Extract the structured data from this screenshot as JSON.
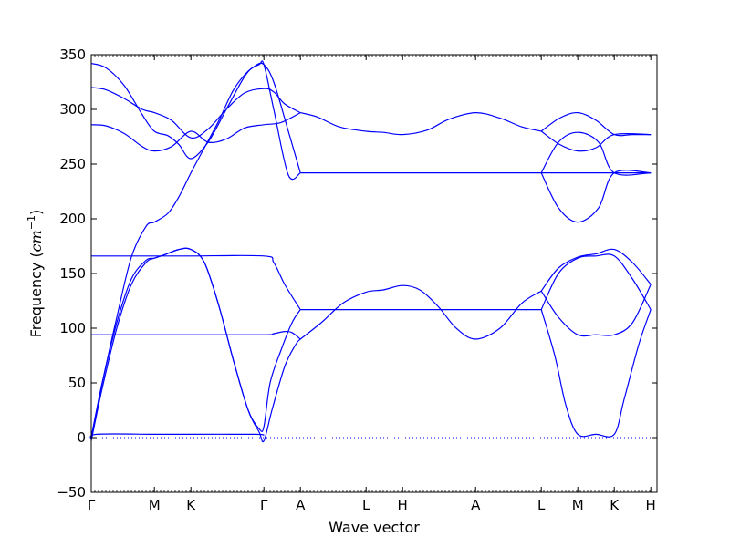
{
  "chart_data": {
    "type": "line",
    "title": "",
    "xlabel": "Wave vector",
    "ylabel_text": "Frequency (",
    "ylabel_unit": "cm",
    "ylabel_unit_exp": "−1",
    "ylabel_close": ")",
    "ylim": [
      -50,
      350
    ],
    "yticks": [
      -50,
      0,
      50,
      100,
      150,
      200,
      250,
      300,
      350
    ],
    "ytick_labels": [
      "−50",
      "0",
      "50",
      "100",
      "150",
      "200",
      "250",
      "300",
      "350"
    ],
    "xlim": [
      0,
      15.5
    ],
    "xticks": [
      {
        "label": "Γ",
        "x": 0.0
      },
      {
        "label": "M",
        "x": 1.73
      },
      {
        "label": "K",
        "x": 2.73
      },
      {
        "label": "Γ",
        "x": 4.73
      },
      {
        "label": "A",
        "x": 5.73
      },
      {
        "label": "L",
        "x": 7.53
      },
      {
        "label": "H",
        "x": 8.53
      },
      {
        "label": "A",
        "x": 10.53
      },
      {
        "label": "L",
        "x": 12.33
      },
      {
        "label": "M",
        "x": 13.33
      },
      {
        "label": "K",
        "x": 14.33
      },
      {
        "label": "H",
        "x": 15.33
      }
    ],
    "zero_line": {
      "y": 0,
      "style": "dotted",
      "color": "#0000ff"
    },
    "line_color": "#0000ff",
    "grid": false,
    "series": [
      {
        "x": [
          0,
          0.4,
          0.9,
          1.4,
          1.73,
          2.1,
          2.4,
          2.73,
          3.2,
          3.7,
          4.2,
          4.5,
          4.73,
          5.0,
          5.4,
          5.73
        ],
        "values": [
          342,
          338,
          322,
          295,
          280,
          276,
          268,
          255,
          270,
          300,
          330,
          340,
          341,
          325,
          280,
          242
        ]
      },
      {
        "x": [
          0,
          0.4,
          0.9,
          1.4,
          1.73,
          2.2,
          2.73,
          3.2,
          3.7,
          4.2,
          4.73,
          5.0,
          5.3,
          5.73
        ],
        "values": [
          320,
          318,
          310,
          300,
          297,
          290,
          274,
          282,
          300,
          315,
          319,
          316,
          305,
          297
        ]
      },
      {
        "x": [
          0,
          0.4,
          0.9,
          1.4,
          1.73,
          2.2,
          2.73,
          3.2,
          3.7,
          4.2,
          4.73,
          5.2,
          5.73
        ],
        "values": [
          286,
          285,
          278,
          266,
          262,
          266,
          280,
          270,
          273,
          283,
          286,
          288,
          297
        ]
      },
      {
        "x": [
          0,
          0.3,
          0.7,
          1.1,
          1.5,
          1.73,
          2.1,
          2.4,
          2.73,
          3.1,
          3.5,
          3.9,
          4.3,
          4.6,
          4.73,
          5.0,
          5.4,
          5.73
        ],
        "values": [
          0,
          50,
          110,
          165,
          193,
          197,
          205,
          220,
          242,
          265,
          290,
          318,
          335,
          341,
          341,
          300,
          240,
          242
        ]
      },
      {
        "x": [
          0,
          1.73,
          2.73,
          4.73,
          5.0,
          5.3,
          5.73
        ],
        "values": [
          166,
          166,
          166,
          166,
          160,
          140,
          117
        ]
      },
      {
        "x": [
          0,
          0.3,
          0.7,
          1.1,
          1.5,
          1.73,
          2.0,
          2.4,
          2.73,
          3.1,
          3.5,
          3.9,
          4.3,
          4.6,
          4.73,
          4.9,
          5.2,
          5.5,
          5.73
        ],
        "values": [
          0,
          50,
          105,
          145,
          162,
          164,
          167,
          172,
          172,
          160,
          120,
          70,
          25,
          8,
          10,
          50,
          80,
          105,
          117
        ]
      },
      {
        "x": [
          0,
          0.3,
          0.7,
          1.1,
          1.5,
          1.73,
          2.0,
          2.4,
          2.73,
          3.1,
          3.5,
          3.9,
          4.3,
          4.6,
          4.73,
          4.95,
          5.3,
          5.6,
          5.73
        ],
        "values": [
          -3,
          45,
          100,
          140,
          160,
          164,
          167,
          172,
          172,
          160,
          120,
          70,
          25,
          5,
          -3,
          25,
          65,
          85,
          90
        ]
      },
      {
        "x": [
          0,
          1.73,
          2.73,
          4.73,
          5.0,
          5.3,
          5.5,
          5.73
        ],
        "values": [
          94,
          94,
          94,
          94,
          95,
          97,
          96,
          90
        ]
      },
      {
        "x": [
          0,
          0.15,
          1.73,
          2.73,
          4.5,
          4.73
        ],
        "values": [
          -2,
          3,
          3,
          3,
          3,
          2
        ]
      },
      {
        "x": [
          5.73,
          7.53,
          8.53,
          10.53,
          12.33,
          13.33,
          14.33,
          15.33
        ],
        "values": [
          242,
          242,
          242,
          242,
          242,
          242,
          242,
          242
        ]
      },
      {
        "x": [
          5.73,
          6.2,
          6.8,
          7.53,
          8.0,
          8.53,
          9.2,
          9.8,
          10.53,
          11.2,
          11.8,
          12.33
        ],
        "values": [
          297,
          293,
          284,
          280,
          279,
          277,
          281,
          291,
          297,
          292,
          284,
          280
        ]
      },
      {
        "x": [
          5.73,
          6.3,
          6.9,
          7.53,
          8.0,
          8.53,
          9.0,
          9.5,
          10.0,
          10.53,
          11.2,
          11.8,
          12.33
        ],
        "values": [
          90,
          105,
          123,
          133,
          135,
          139,
          135,
          120,
          100,
          90,
          100,
          123,
          134
        ]
      },
      {
        "x": [
          5.73,
          7.53,
          8.53,
          10.53,
          12.33
        ],
        "values": [
          117,
          117,
          117,
          117,
          117
        ]
      },
      {
        "x": [
          12.33,
          12.83,
          13.33,
          13.83,
          14.33,
          14.83,
          15.33
        ],
        "values": [
          280,
          292,
          297,
          290,
          277,
          277,
          277
        ]
      },
      {
        "x": [
          12.33,
          12.83,
          13.33,
          13.83,
          14.33,
          15.33
        ],
        "values": [
          280,
          268,
          262,
          265,
          277,
          277
        ]
      },
      {
        "x": [
          12.33,
          12.8,
          13.33,
          13.9,
          14.33,
          15.33
        ],
        "values": [
          242,
          270,
          279,
          270,
          242,
          242
        ]
      },
      {
        "x": [
          12.33,
          12.8,
          13.33,
          13.9,
          14.33,
          15.33
        ],
        "values": [
          242,
          210,
          197,
          210,
          242,
          242
        ]
      },
      {
        "x": [
          12.33,
          12.8,
          13.33,
          13.83,
          14.33,
          14.83,
          15.33
        ],
        "values": [
          134,
          155,
          165,
          168,
          172,
          160,
          140
        ]
      },
      {
        "x": [
          12.33,
          12.8,
          13.33,
          13.83,
          14.33,
          14.83,
          15.33
        ],
        "values": [
          117,
          150,
          164,
          166,
          166,
          145,
          117
        ]
      },
      {
        "x": [
          12.33,
          12.8,
          13.33,
          13.83,
          14.33,
          14.83,
          15.33
        ],
        "values": [
          134,
          110,
          94,
          94,
          94,
          105,
          140
        ]
      },
      {
        "x": [
          12.33,
          12.7,
          13.0,
          13.33,
          13.83,
          14.33,
          14.6,
          15.0,
          15.33
        ],
        "values": [
          117,
          75,
          30,
          3,
          3,
          3,
          35,
          85,
          117
        ]
      }
    ]
  }
}
